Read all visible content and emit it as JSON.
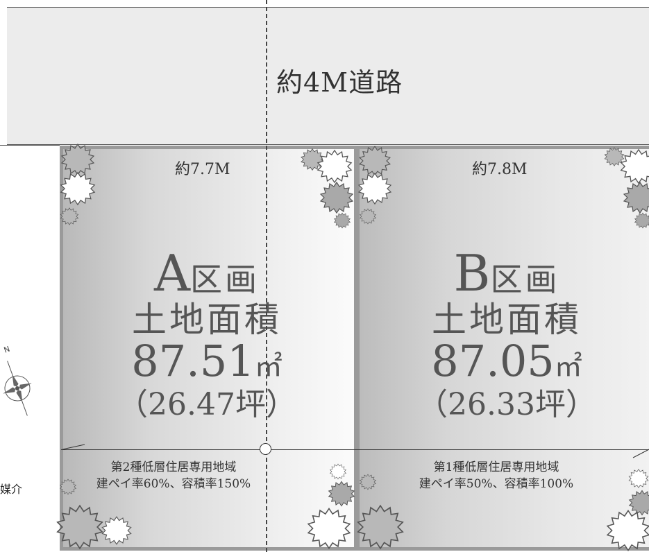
{
  "road": {
    "label": "約4M道路"
  },
  "lots": [
    {
      "frontage": "約7.7M",
      "name_letter": "A",
      "name_suffix": "区画",
      "area_title": "土地面積",
      "area_value": "87.51",
      "area_unit": "㎡",
      "area_tsubo": "（26.47坪）",
      "zoning": "第2種低層住居専用地域",
      "ratios": "建ペイ率60%、容積率150%"
    },
    {
      "frontage": "約7.8M",
      "name_letter": "B",
      "name_suffix": "区画",
      "area_title": "土地面積",
      "area_value": "87.05",
      "area_unit": "㎡",
      "area_tsubo": "（26.33坪）",
      "zoning": "第1種低層住居専用地域",
      "ratios": "建ペイ率50%、容積率100%"
    }
  ],
  "compass": {
    "north_label": "N",
    "icon": "compass-rose-icon"
  },
  "side_text": "媒介",
  "colors": {
    "lot_border": "#9a9a9a",
    "road_fill": "#ececec",
    "tree_fill": "#b8b8b8",
    "tree_fill_light": "#ffffff"
  }
}
